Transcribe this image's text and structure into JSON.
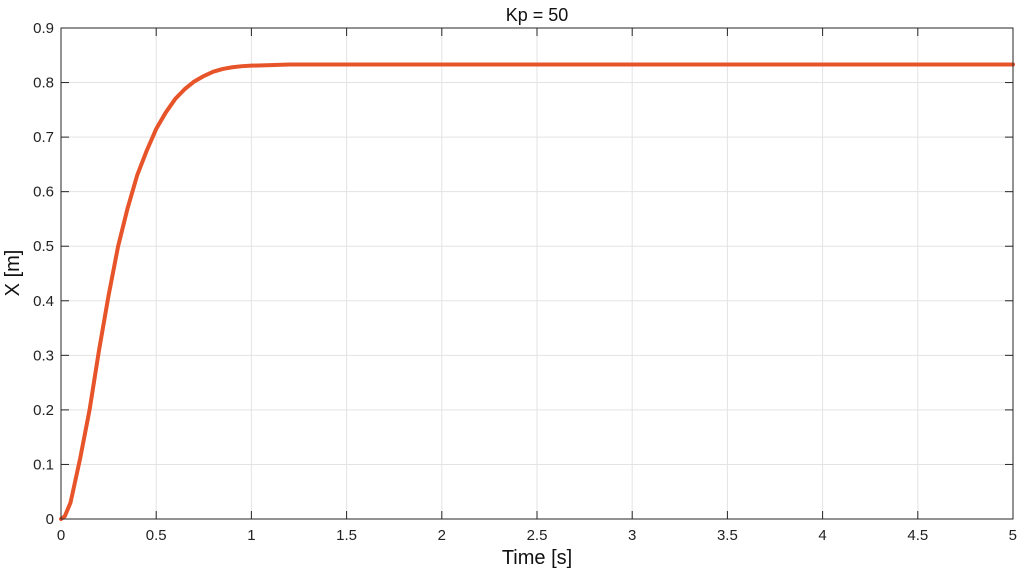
{
  "chart_data": {
    "type": "line",
    "title": "Kp = 50",
    "xlabel": "Time [s]",
    "ylabel": "X [m]",
    "xlim": [
      0,
      5
    ],
    "ylim": [
      0,
      0.9
    ],
    "xticks": [
      "0",
      "0.5",
      "1",
      "1.5",
      "2",
      "2.5",
      "3",
      "3.5",
      "4",
      "4.5",
      "5"
    ],
    "yticks": [
      "0",
      "0.1",
      "0.2",
      "0.3",
      "0.4",
      "0.5",
      "0.6",
      "0.7",
      "0.8",
      "0.9"
    ],
    "grid": true,
    "legend": false,
    "series": [
      {
        "color": "#e8542a",
        "x": [
          0,
          0.02,
          0.05,
          0.1,
          0.15,
          0.2,
          0.25,
          0.3,
          0.35,
          0.4,
          0.45,
          0.5,
          0.55,
          0.6,
          0.65,
          0.7,
          0.75,
          0.8,
          0.85,
          0.9,
          0.95,
          1.0,
          1.1,
          1.2,
          1.3,
          1.4,
          1.5,
          2.0,
          2.5,
          3.0,
          3.5,
          4.0,
          4.5,
          5.0
        ],
        "y": [
          0,
          0.005,
          0.03,
          0.11,
          0.2,
          0.31,
          0.41,
          0.5,
          0.57,
          0.63,
          0.675,
          0.715,
          0.745,
          0.77,
          0.788,
          0.802,
          0.812,
          0.82,
          0.825,
          0.828,
          0.83,
          0.831,
          0.832,
          0.833,
          0.833,
          0.833,
          0.833,
          0.833,
          0.833,
          0.833,
          0.833,
          0.833,
          0.833,
          0.833
        ]
      }
    ]
  }
}
